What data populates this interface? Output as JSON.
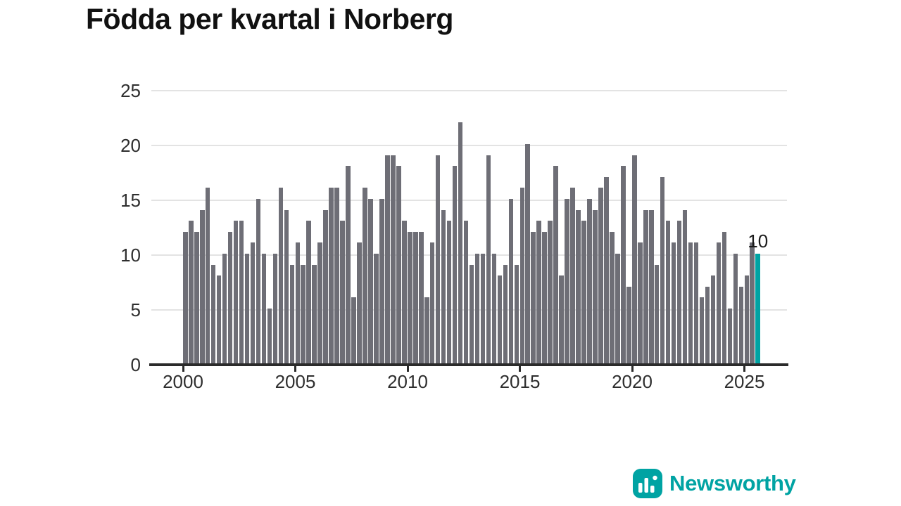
{
  "title": "Födda per kvartal i Norberg",
  "annotation": {
    "last_value_label": "10"
  },
  "branding": {
    "name": "Newsworthy",
    "icon": "bar-chart-logo-icon",
    "color": "#00a3a3"
  },
  "colors": {
    "bar": "#6e6e76",
    "highlight": "#00a3a3",
    "axis": "#2b2b2b",
    "grid": "#e3e3e3",
    "text": "#2e2e2e",
    "title_text": "#111111"
  },
  "chart_data": {
    "type": "bar",
    "title": "Födda per kvartal i Norberg",
    "xlabel": "",
    "ylabel": "",
    "x_start": "2000-Q1",
    "x_end": "2025-Q3",
    "frequency": "quarterly",
    "x_tick_labels": [
      "2000",
      "2005",
      "2010",
      "2015",
      "2020",
      "2025"
    ],
    "y_ticks": [
      0,
      5,
      10,
      15,
      20,
      25
    ],
    "ylim": [
      0,
      25
    ],
    "grid": true,
    "legend": "none",
    "highlight_last_bar": true,
    "highlight_value": 10,
    "values": [
      12,
      13,
      12,
      14,
      16,
      9,
      8,
      10,
      12,
      13,
      13,
      10,
      11,
      15,
      10,
      5,
      10,
      16,
      14,
      9,
      11,
      9,
      13,
      9,
      11,
      14,
      16,
      16,
      13,
      18,
      6,
      11,
      16,
      15,
      10,
      15,
      19,
      19,
      18,
      13,
      12,
      12,
      12,
      6,
      11,
      19,
      14,
      13,
      18,
      22,
      13,
      9,
      10,
      10,
      19,
      10,
      8,
      9,
      15,
      9,
      16,
      20,
      12,
      13,
      12,
      13,
      18,
      8,
      15,
      16,
      14,
      13,
      15,
      14,
      16,
      17,
      12,
      10,
      18,
      7,
      19,
      11,
      14,
      14,
      9,
      17,
      13,
      11,
      13,
      14,
      11,
      11,
      6,
      7,
      8,
      11,
      12,
      5,
      10,
      7,
      8,
      11,
      10
    ]
  }
}
